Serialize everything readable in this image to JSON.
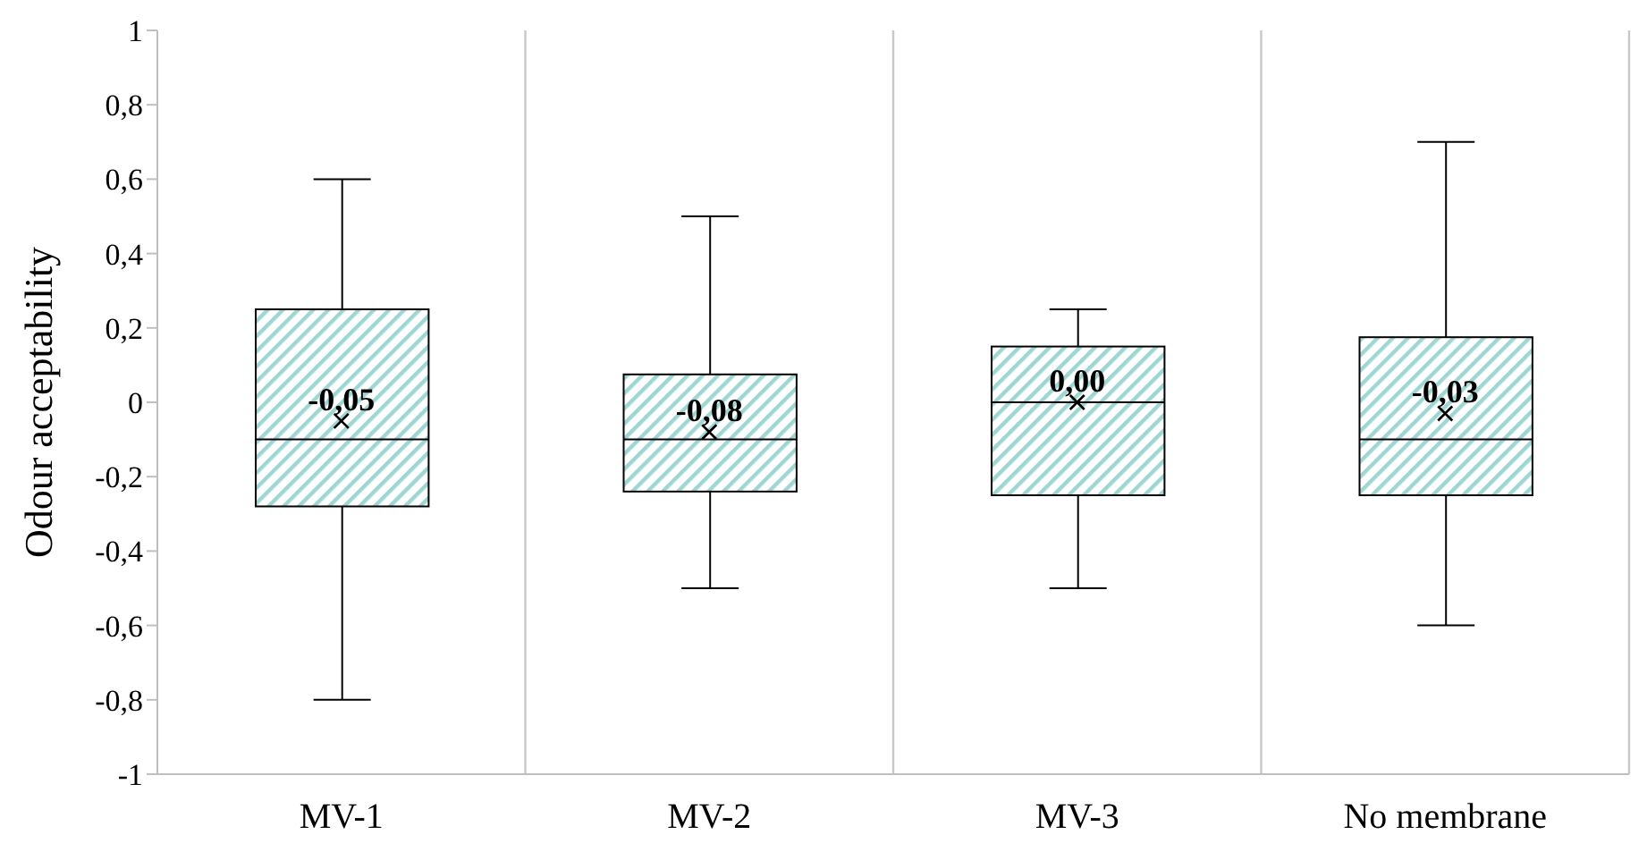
{
  "chart_data": {
    "type": "box",
    "ylabel": "Odour acceptability",
    "categories": [
      "MV-1",
      "MV-2",
      "MV-3",
      "No membrane"
    ],
    "series": [
      {
        "color": "#9ed6d2",
        "boxes": [
          {
            "low": -0.8,
            "q1": -0.28,
            "median": -0.1,
            "q3": 0.25,
            "high": 0.6,
            "mean": -0.05
          },
          {
            "low": -0.5,
            "q1": -0.24,
            "median": -0.1,
            "q3": 0.075,
            "high": 0.5,
            "mean": -0.08
          },
          {
            "low": -0.5,
            "q1": -0.25,
            "median": 0,
            "q3": 0.15,
            "high": 0.25,
            "mean": 0
          },
          {
            "low": -0.6,
            "q1": -0.25,
            "median": -0.1,
            "q3": 0.175,
            "high": 0.7,
            "mean": -0.03
          }
        ]
      }
    ],
    "ylim": [
      -1,
      1
    ],
    "yticks": [
      -1,
      {
        "value": -0.8,
        "label": "-0,8"
      },
      {
        "value": -0.6,
        "label": "-0,6"
      },
      {
        "value": -0.4,
        "label": "-0,4"
      },
      {
        "value": -0.2,
        "label": "-0,2"
      },
      0,
      {
        "value": 0.2,
        "label": "0,2"
      },
      {
        "value": 0.4,
        "label": "0,4"
      },
      {
        "value": 0.6,
        "label": "0,6"
      },
      {
        "value": 0.8,
        "label": "0,8"
      },
      1
    ],
    "grid": "x",
    "marker": "cross",
    "annotations": [
      "-0,05",
      "-0,08",
      "0,00",
      "-0,03"
    ]
  }
}
